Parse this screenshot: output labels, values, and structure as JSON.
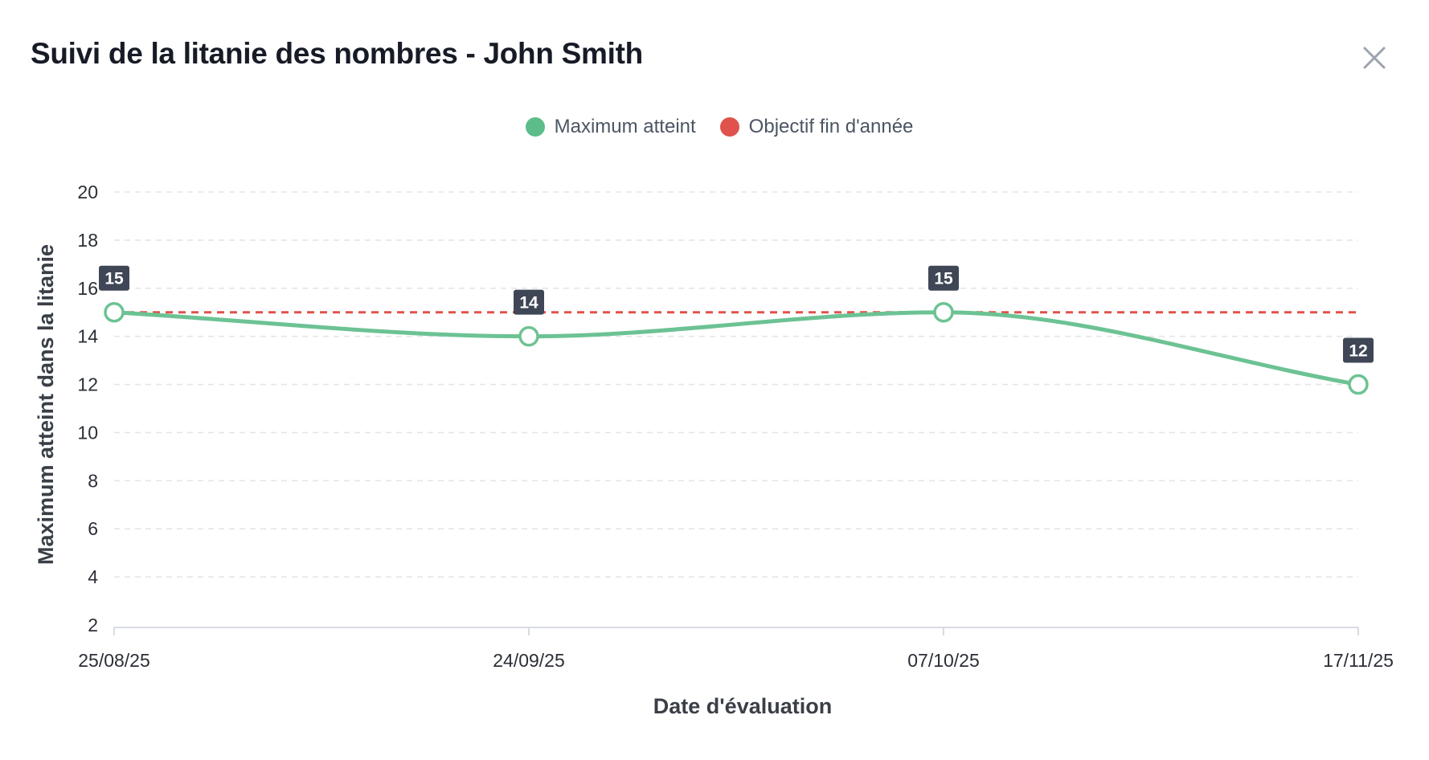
{
  "modal": {
    "title": "Suivi de la litanie des nombres - John Smith",
    "close_icon": "close-icon"
  },
  "colors": {
    "series": "#6cc293",
    "target": "#e0524c",
    "label_bg": "#3f4756",
    "grid": "#e3e5e8",
    "axis_text": "#2b2f36",
    "legend_text": "#4b5563"
  },
  "chart_data": {
    "type": "line",
    "title": "",
    "xlabel": "Date d'évaluation",
    "ylabel": "Maximum atteint dans la litanie",
    "categories": [
      "25/08/25",
      "24/09/25",
      "07/10/25",
      "17/11/25"
    ],
    "yticks": [
      "2",
      "4",
      "6",
      "8",
      "10",
      "12",
      "14",
      "16",
      "18",
      "20"
    ],
    "ylim": [
      2,
      20
    ],
    "grid": true,
    "legend_position": "top-center",
    "series": [
      {
        "name": "Maximum atteint",
        "values": [
          15,
          14,
          15,
          12
        ],
        "data_labels": [
          "15",
          "14",
          "15",
          "12"
        ],
        "smooth": true
      },
      {
        "name": "Objectif fin d'année",
        "values": [
          15,
          15,
          15,
          15
        ],
        "dashed": true
      }
    ]
  }
}
